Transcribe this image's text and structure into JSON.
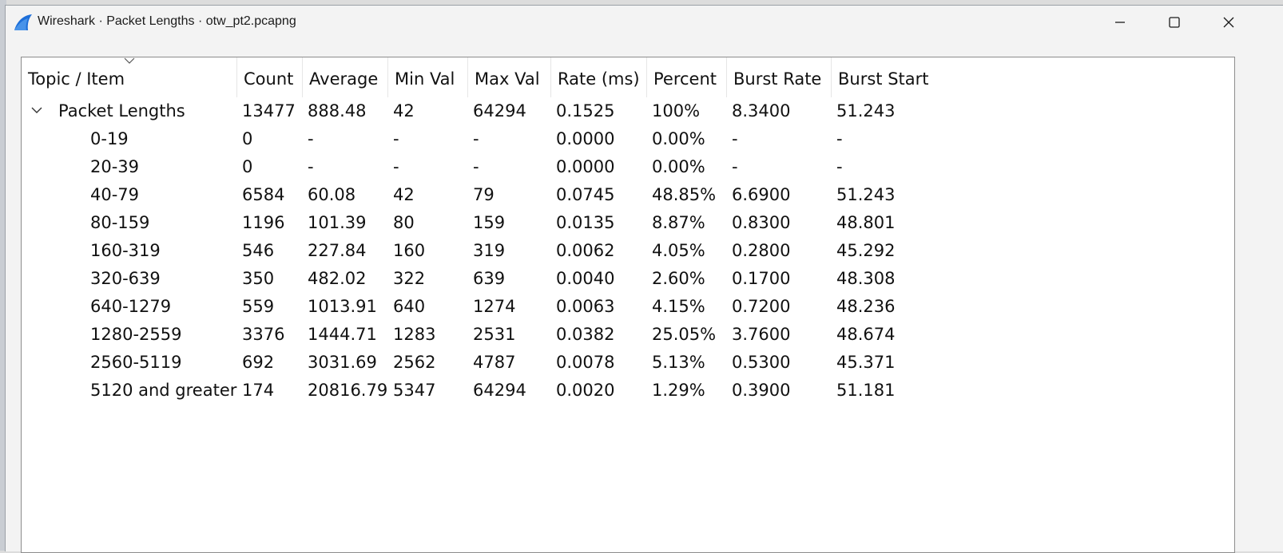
{
  "window": {
    "title": "Wireshark · Packet Lengths · otw_pt2.pcapng"
  },
  "colors": {
    "accent": "#1e6fd9",
    "panel_bg": "#ffffff",
    "window_bg": "#f3f3f3"
  },
  "columns": [
    "Topic / Item",
    "Count",
    "Average",
    "Min Val",
    "Max Val",
    "Rate (ms)",
    "Percent",
    "Burst Rate",
    "Burst Start"
  ],
  "parent": {
    "cells": [
      "Packet Lengths",
      "13477",
      "888.48",
      "42",
      "64294",
      "0.1525",
      "100%",
      "8.3400",
      "51.243"
    ]
  },
  "rows": [
    [
      "0-19",
      "0",
      "-",
      "-",
      "-",
      "0.0000",
      "0.00%",
      "-",
      "-"
    ],
    [
      "20-39",
      "0",
      "-",
      "-",
      "-",
      "0.0000",
      "0.00%",
      "-",
      "-"
    ],
    [
      "40-79",
      "6584",
      "60.08",
      "42",
      "79",
      "0.0745",
      "48.85%",
      "6.6900",
      "51.243"
    ],
    [
      "80-159",
      "1196",
      "101.39",
      "80",
      "159",
      "0.0135",
      "8.87%",
      "0.8300",
      "48.801"
    ],
    [
      "160-319",
      "546",
      "227.84",
      "160",
      "319",
      "0.0062",
      "4.05%",
      "0.2800",
      "45.292"
    ],
    [
      "320-639",
      "350",
      "482.02",
      "322",
      "639",
      "0.0040",
      "2.60%",
      "0.1700",
      "48.308"
    ],
    [
      "640-1279",
      "559",
      "1013.91",
      "640",
      "1274",
      "0.0063",
      "4.15%",
      "0.7200",
      "48.236"
    ],
    [
      "1280-2559",
      "3376",
      "1444.71",
      "1283",
      "2531",
      "0.0382",
      "25.05%",
      "3.7600",
      "48.674"
    ],
    [
      "2560-5119",
      "692",
      "3031.69",
      "2562",
      "4787",
      "0.0078",
      "5.13%",
      "0.5300",
      "45.371"
    ],
    [
      "5120 and greater",
      "174",
      "20816.79",
      "5347",
      "64294",
      "0.0020",
      "1.29%",
      "0.3900",
      "51.181"
    ]
  ]
}
